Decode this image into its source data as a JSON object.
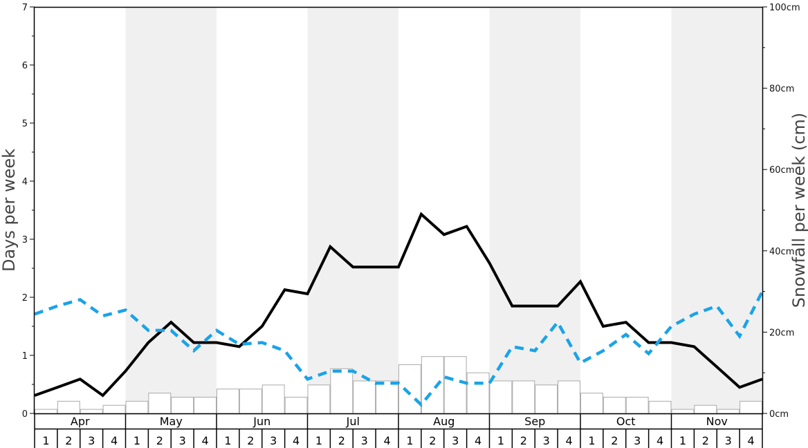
{
  "chart_data": {
    "type": "line",
    "title": "",
    "ylabel": "Days per week",
    "y2label": "Snowfall per week (cm)",
    "ylim": [
      0,
      7
    ],
    "y2lim": [
      0,
      100
    ],
    "y_ticks": [
      "0",
      "1",
      "2",
      "3",
      "4",
      "5",
      "6",
      "7"
    ],
    "y2_ticks": [
      "0cm",
      "20cm",
      "40cm",
      "60cm",
      "80cm",
      "100cm"
    ],
    "months": [
      "Apr",
      "May",
      "Jun",
      "Jul",
      "Aug",
      "Sep",
      "Oct",
      "Nov"
    ],
    "week_labels": [
      "1",
      "2",
      "3",
      "4"
    ],
    "shaded_months": [
      "May",
      "Jul",
      "Sep",
      "Nov"
    ],
    "grid": false,
    "colors": {
      "solid_line": "#000000",
      "dashed_line": "#1aa3e8",
      "bars_fill": "#ffffff",
      "bars_stroke": "#aaaaaa",
      "shading": "#f0f0f0"
    },
    "series": [
      {
        "style": "solid",
        "axis": "left",
        "values": [
          0.31,
          0.45,
          0.59,
          0.31,
          0.73,
          1.22,
          1.57,
          1.22,
          1.22,
          1.15,
          1.5,
          2.13,
          2.06,
          2.87,
          2.52,
          2.52,
          2.52,
          3.43,
          3.08,
          3.22,
          2.59,
          1.85,
          1.85,
          1.85,
          2.27,
          1.5,
          1.57,
          1.22,
          1.22,
          1.15,
          0.8,
          0.45,
          0.59
        ]
      },
      {
        "style": "dashed",
        "axis": "left",
        "values": [
          1.71,
          1.85,
          1.96,
          1.68,
          1.78,
          1.43,
          1.43,
          1.08,
          1.43,
          1.19,
          1.22,
          1.08,
          0.59,
          0.73,
          0.73,
          0.52,
          0.52,
          0.15,
          0.63,
          0.52,
          0.52,
          1.15,
          1.08,
          1.57,
          0.87,
          1.08,
          1.36,
          1.03,
          1.5,
          1.71,
          1.85,
          1.33,
          2.1
        ]
      },
      {
        "style": "bars",
        "axis": "right",
        "values": [
          1,
          3,
          1,
          2,
          3,
          5,
          4,
          4,
          6,
          6,
          7,
          4,
          7,
          11,
          8,
          8,
          12,
          14,
          14,
          10,
          8,
          8,
          7,
          8,
          5,
          4,
          4,
          3,
          1,
          2,
          1,
          3
        ]
      }
    ]
  }
}
